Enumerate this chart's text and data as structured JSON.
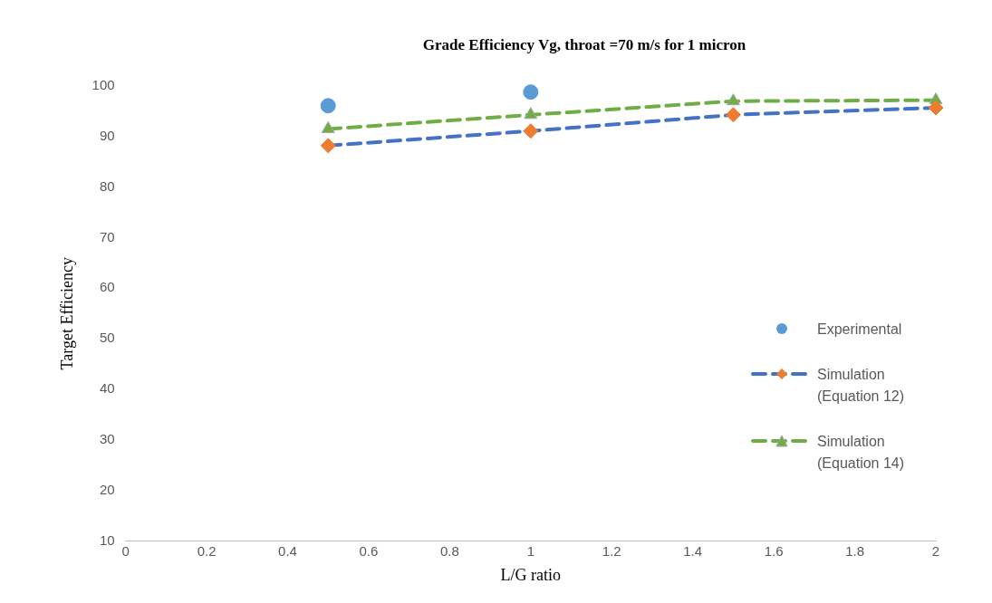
{
  "chart_data": {
    "type": "line",
    "title": "Grade Efficiency Vg, throat =70 m/s for 1 micron",
    "xlabel": "L/G ratio",
    "ylabel": "Target Efficiency",
    "xlim": [
      0,
      2
    ],
    "xticks": [
      0,
      0.2,
      0.4,
      0.6,
      0.8,
      1,
      1.2,
      1.4,
      1.6,
      1.8,
      2
    ],
    "ylim": [
      10,
      100
    ],
    "yticks": [
      10,
      20,
      30,
      40,
      50,
      60,
      70,
      80,
      90,
      100
    ],
    "grid": false,
    "legend": "right",
    "series": [
      {
        "name": "Experimental",
        "type": "scatter",
        "marker": "circle",
        "color": "#5b9bd5",
        "x": [
          0.5,
          1
        ],
        "values": [
          96.1,
          98.8
        ]
      },
      {
        "name": "Simulation (Equation 12)",
        "marker": "diamond",
        "line_style": "dashed",
        "color": "#4472c4",
        "colors": [
          "#ed7d31",
          "#ed7d31",
          "#ed7d31",
          "#ed7d31"
        ],
        "x": [
          0.5,
          1,
          1.5,
          2
        ],
        "values": [
          88.2,
          91.1,
          94.3,
          95.7
        ]
      },
      {
        "name": "Simulation (Equation 14)",
        "marker": "triangle",
        "line_style": "dashed",
        "color": "#70ad47",
        "x": [
          0.5,
          1,
          1.5,
          2
        ],
        "values": [
          91.5,
          94.3,
          97.0,
          97.2
        ]
      }
    ]
  }
}
